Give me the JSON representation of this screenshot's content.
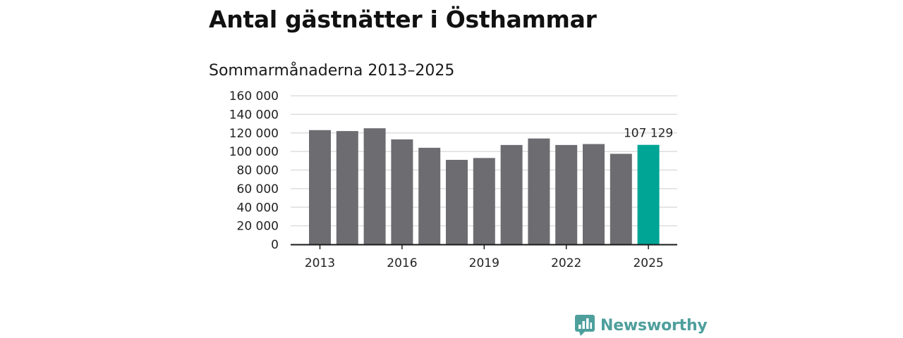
{
  "chart_data": {
    "type": "bar",
    "title": "Antal gästnätter i Östhammar",
    "subtitle": "Sommarmånaderna 2013–2025",
    "categories": [
      "2013",
      "2014",
      "2015",
      "2016",
      "2017",
      "2018",
      "2019",
      "2020",
      "2021",
      "2022",
      "2023",
      "2024",
      "2025"
    ],
    "values": [
      123000,
      122000,
      125000,
      113000,
      104000,
      91000,
      93000,
      107000,
      114000,
      107000,
      108000,
      97500,
      107129
    ],
    "highlight_category": "2025",
    "highlight_label": "107 129",
    "ylim": [
      0,
      160000
    ],
    "yticks": [
      0,
      20000,
      40000,
      60000,
      80000,
      100000,
      120000,
      140000,
      160000
    ],
    "ytick_labels": [
      "0",
      "20 000",
      "40 000",
      "60 000",
      "80 000",
      "100 000",
      "120 000",
      "140 000",
      "160 000"
    ],
    "xtick_labels": [
      "2013",
      "2016",
      "2019",
      "2022",
      "2025"
    ],
    "xlabel": "",
    "ylabel": "",
    "grid": true,
    "colors": {
      "bar": "#6d6c71",
      "highlight": "#00a596",
      "grid": "#dddddd",
      "axis": "#1a1a1a"
    }
  },
  "branding": {
    "logo_text": "Newsworthy",
    "logo_color": "#4e9f9c",
    "logo_icon": "bar-chart-speech-bubble-icon"
  }
}
